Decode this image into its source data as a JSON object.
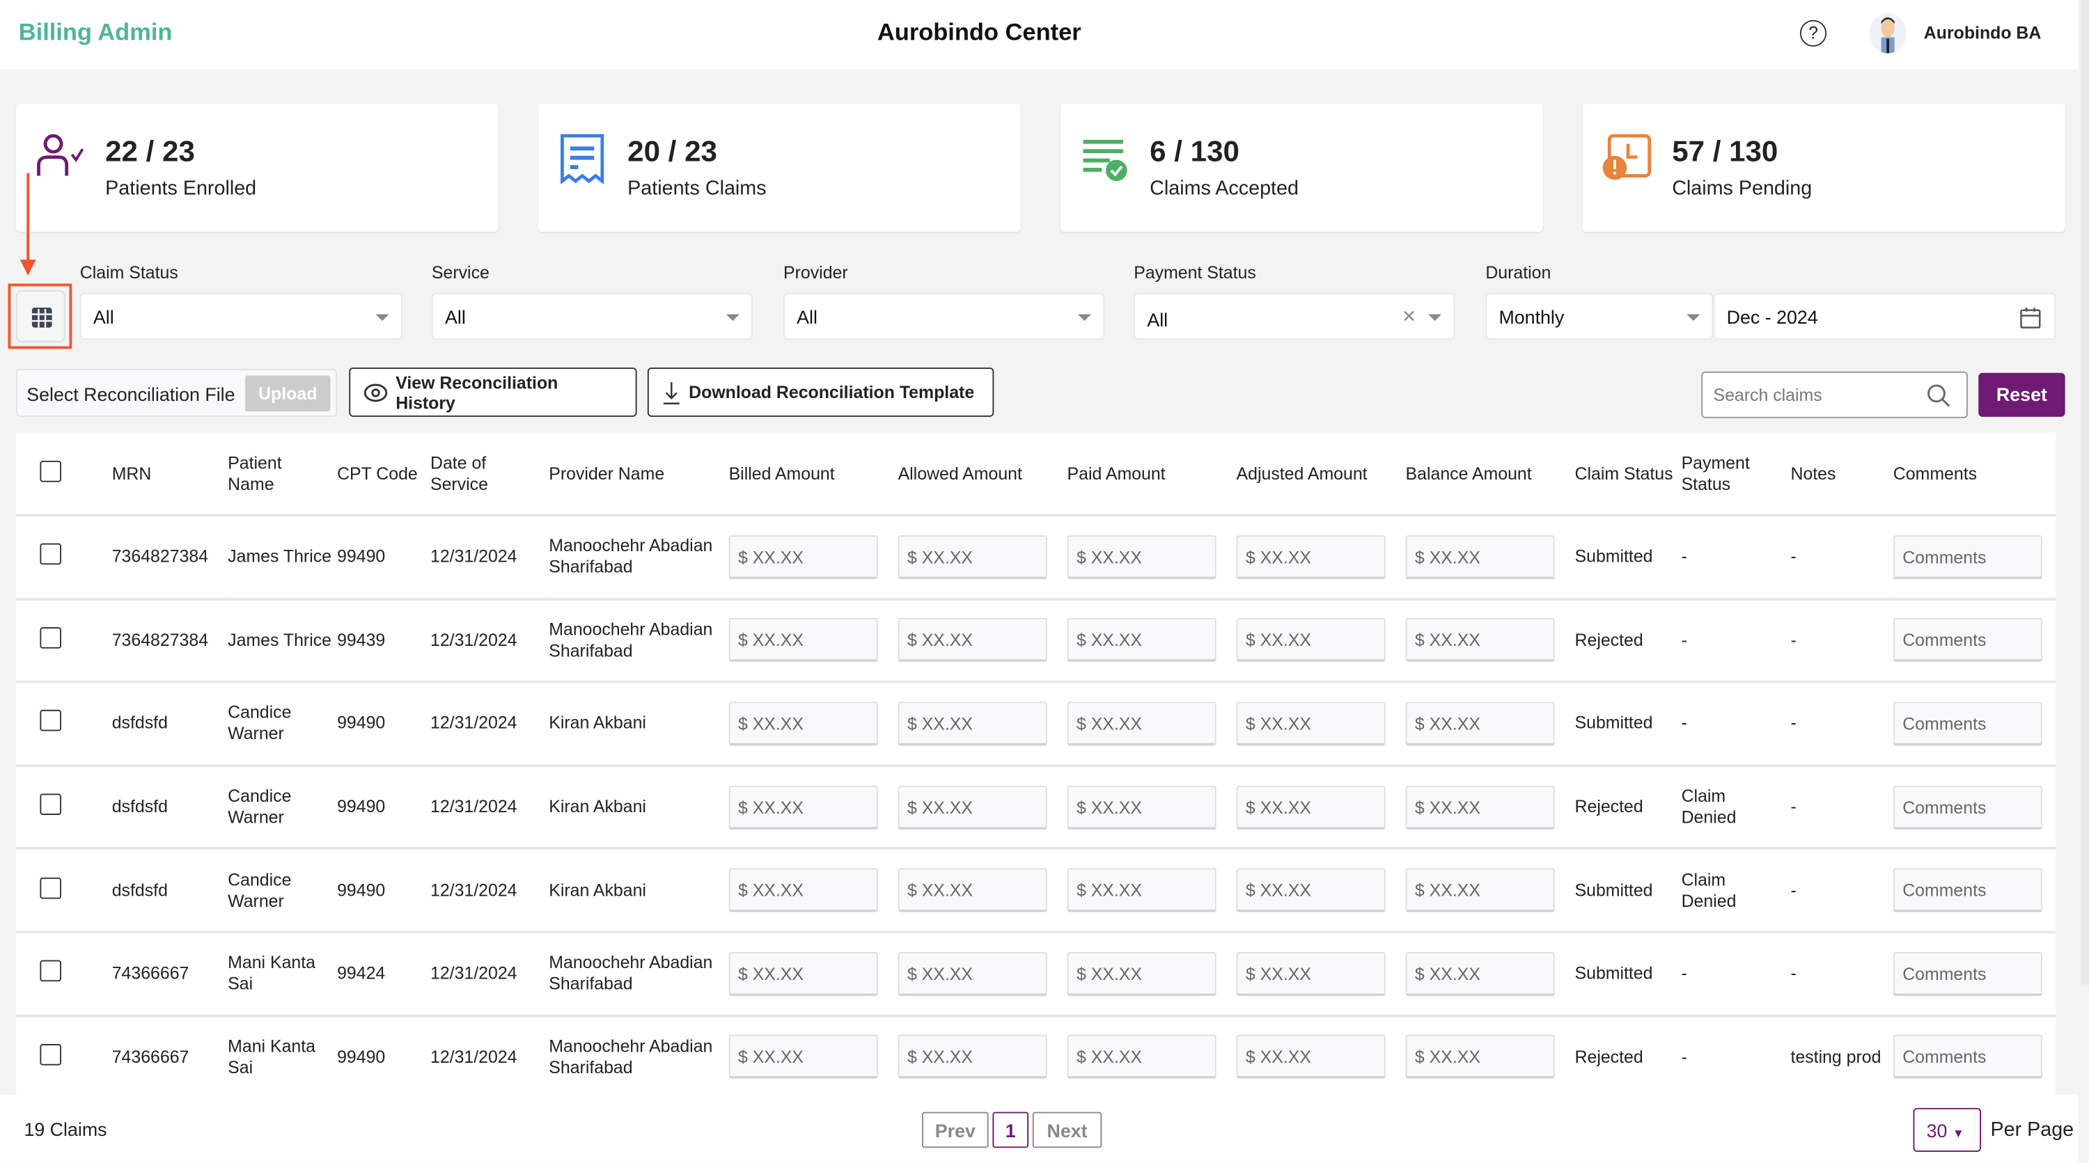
{
  "header": {
    "brand": "Billing Admin",
    "title": "Aurobindo Center",
    "user": "Aurobindo BA"
  },
  "cards": [
    {
      "value": "22 / 23",
      "label": "Patients Enrolled",
      "color": "#6f1a73"
    },
    {
      "value": "20 / 23",
      "label": "Patients Claims",
      "color": "#3b7ee6"
    },
    {
      "value": "6 / 130",
      "label": "Claims Accepted",
      "color": "#4caf64"
    },
    {
      "value": "57 / 130",
      "label": "Claims Pending",
      "color": "#e8843c"
    }
  ],
  "filters": {
    "claim_status": {
      "label": "Claim Status",
      "value": "All"
    },
    "service": {
      "label": "Service",
      "value": "All"
    },
    "provider": {
      "label": "Provider",
      "value": "All"
    },
    "payment_status": {
      "label": "Payment Status",
      "value": "All"
    },
    "duration": {
      "label": "Duration",
      "value": "Monthly",
      "date": "Dec - 2024"
    }
  },
  "toolbar": {
    "select_file": "Select Reconciliation File",
    "upload": "Upload",
    "view_history": "View Reconciliation History",
    "download_template": "Download Reconciliation Template",
    "search_placeholder": "Search claims",
    "reset": "Reset"
  },
  "table": {
    "columns": [
      "MRN",
      "Patient Name",
      "CPT Code",
      "Date of Service",
      "Provider Name",
      "Billed Amount",
      "Allowed Amount",
      "Paid Amount",
      "Adjusted Amount",
      "Balance Amount",
      "Claim Status",
      "Payment Status",
      "Notes",
      "Comments"
    ],
    "amount_placeholder": "$ XX.XX",
    "comments_placeholder": "Comments",
    "rows": [
      {
        "mrn": "7364827384",
        "patient": "James Thrice",
        "cpt": "99490",
        "dos": "12/31/2024",
        "provider": "Manoochehr Abadian Sharifabad",
        "claim_status": "Submitted",
        "payment_status": "-",
        "notes": "-"
      },
      {
        "mrn": "7364827384",
        "patient": "James Thrice",
        "cpt": "99439",
        "dos": "12/31/2024",
        "provider": "Manoochehr Abadian Sharifabad",
        "claim_status": "Rejected",
        "payment_status": "-",
        "notes": "-"
      },
      {
        "mrn": "dsfdsfd",
        "patient": "Candice Warner",
        "cpt": "99490",
        "dos": "12/31/2024",
        "provider": "Kiran Akbani",
        "claim_status": "Submitted",
        "payment_status": "-",
        "notes": "-"
      },
      {
        "mrn": "dsfdsfd",
        "patient": "Candice Warner",
        "cpt": "99490",
        "dos": "12/31/2024",
        "provider": "Kiran Akbani",
        "claim_status": "Rejected",
        "payment_status": "Claim Denied",
        "notes": "-"
      },
      {
        "mrn": "dsfdsfd",
        "patient": "Candice Warner",
        "cpt": "99490",
        "dos": "12/31/2024",
        "provider": "Kiran Akbani",
        "claim_status": "Submitted",
        "payment_status": "Claim Denied",
        "notes": "-"
      },
      {
        "mrn": "74366667",
        "patient": "Mani Kanta Sai",
        "cpt": "99424",
        "dos": "12/31/2024",
        "provider": "Manoochehr Abadian Sharifabad",
        "claim_status": "Submitted",
        "payment_status": "-",
        "notes": "-"
      },
      {
        "mrn": "74366667",
        "patient": "Mani Kanta Sai",
        "cpt": "99490",
        "dos": "12/31/2024",
        "provider": "Manoochehr Abadian Sharifabad",
        "claim_status": "Rejected",
        "payment_status": "-",
        "notes": "testing prod"
      }
    ]
  },
  "footer": {
    "count": "19 Claims",
    "prev": "Prev",
    "page": "1",
    "next": "Next",
    "per_page_value": "30",
    "per_page_label": "Per Page"
  }
}
